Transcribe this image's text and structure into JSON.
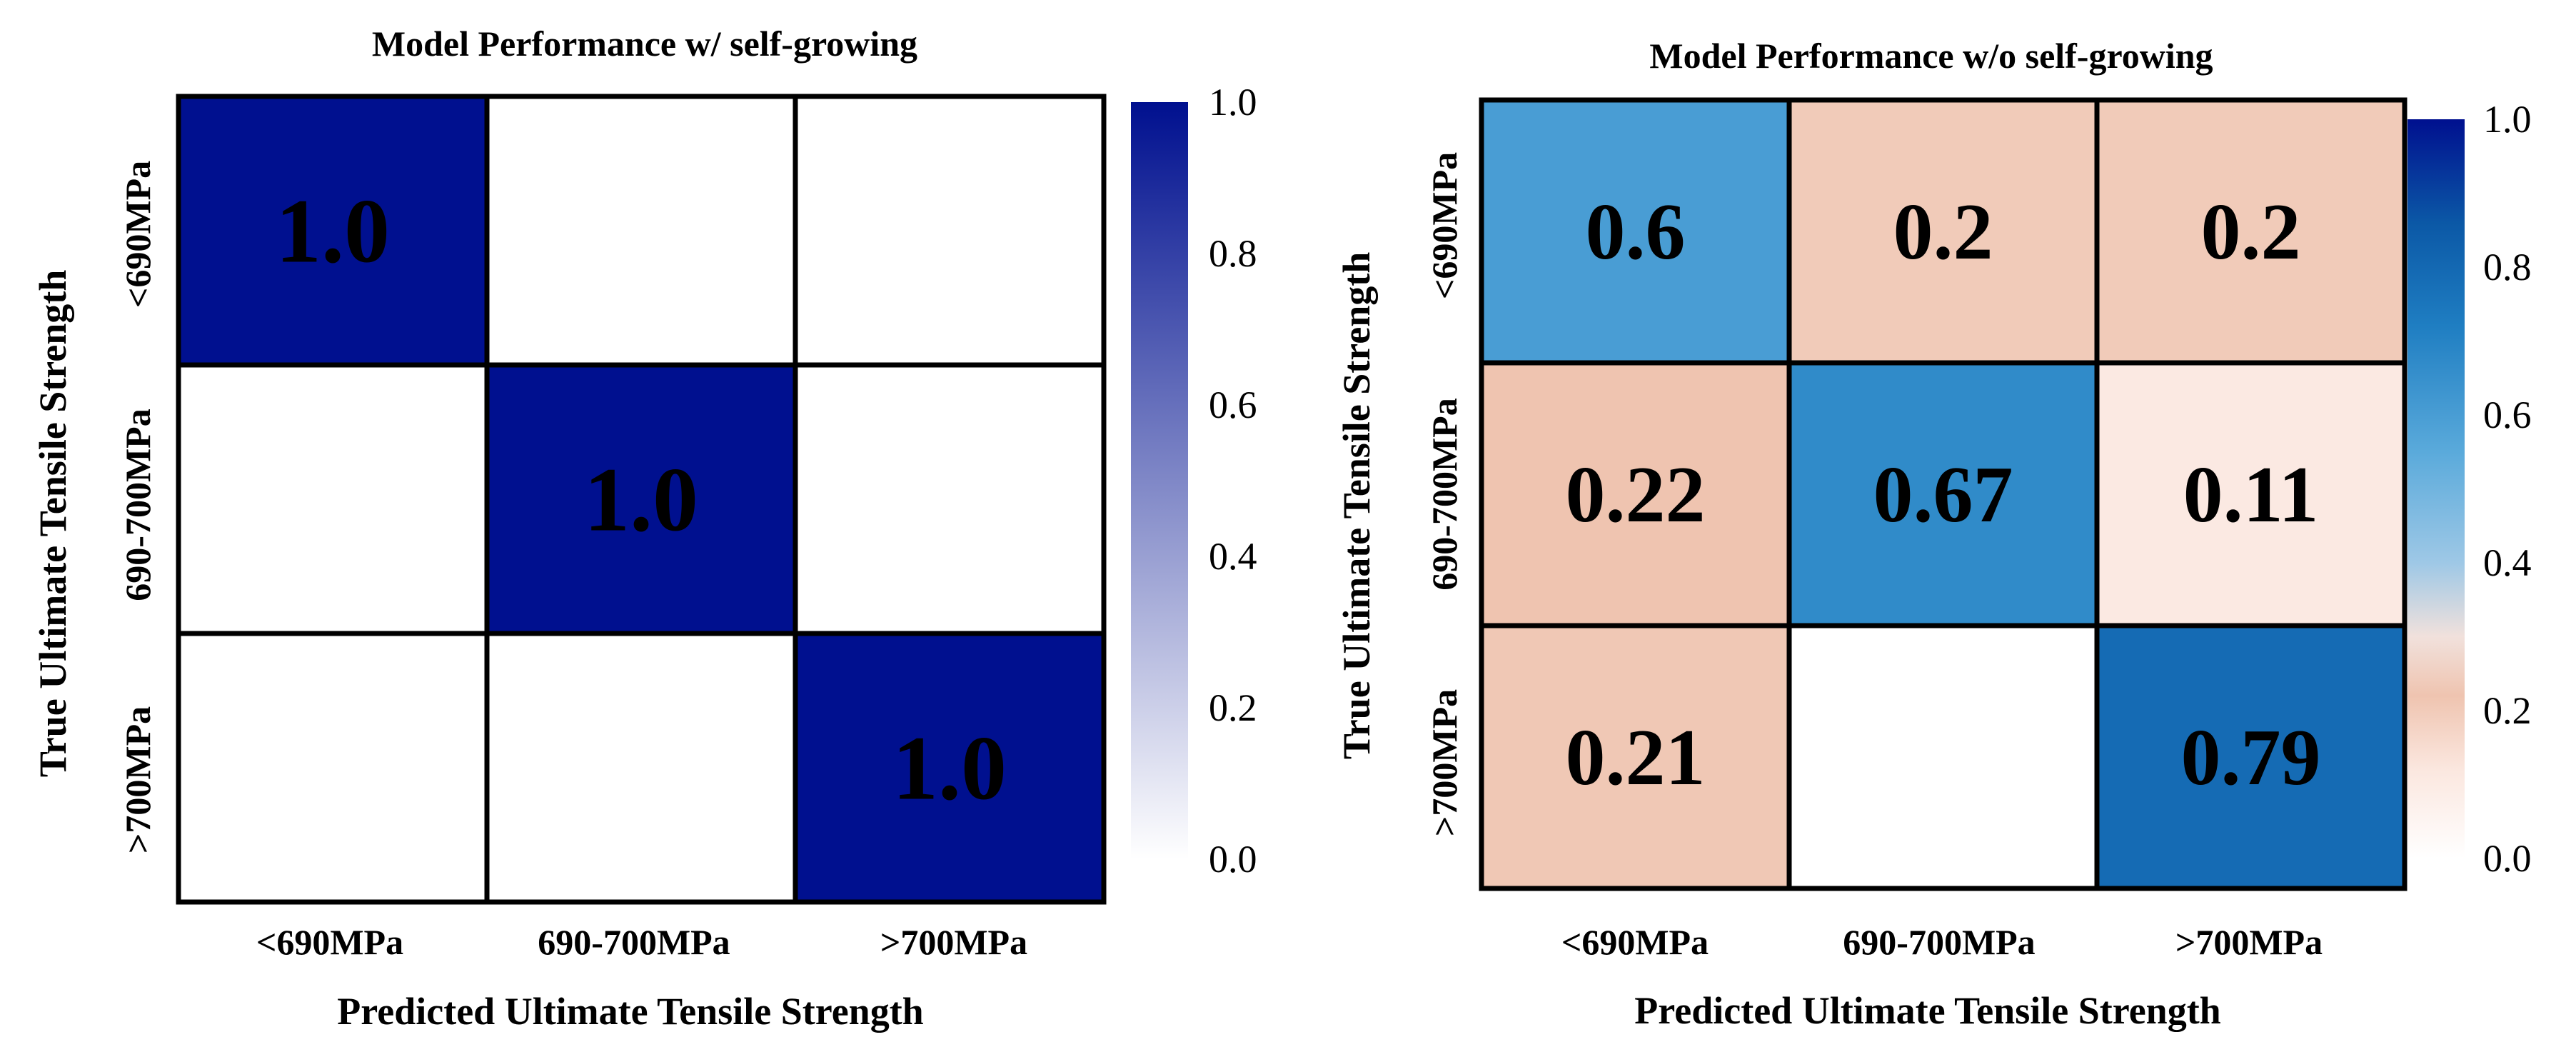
{
  "chart_data": [
    {
      "type": "heatmap",
      "title": "Model Performance w/ self-growing",
      "xlabel": "Predicted Ultimate Tensile Strength",
      "ylabel": "True Ultimate Tensile Strength",
      "x_categories": [
        "<690MPa",
        "690-700MPa",
        ">700MPa"
      ],
      "y_categories": [
        "<690MPa",
        "690-700MPa",
        ">700MPa"
      ],
      "values": [
        [
          1.0,
          0,
          0
        ],
        [
          0,
          1.0,
          0
        ],
        [
          0,
          0,
          1.0
        ]
      ],
      "labels": [
        [
          "1.0",
          "",
          ""
        ],
        [
          "",
          "1.0",
          ""
        ],
        [
          "",
          "",
          "1.0"
        ]
      ],
      "colorbar": {
        "range": [
          0,
          1
        ],
        "ticks": [
          "0.0",
          "0.2",
          "0.4",
          "0.6",
          "0.8",
          "1.0"
        ]
      },
      "colormap": "single-blue"
    },
    {
      "type": "heatmap",
      "title": "Model Performance w/o self-growing",
      "xlabel": "Predicted Ultimate Tensile Strength",
      "ylabel": "True Ultimate Tensile Strength",
      "x_categories": [
        "<690MPa",
        "690-700MPa",
        ">700MPa"
      ],
      "y_categories": [
        "<690MPa",
        "690-700MPa",
        ">700MPa"
      ],
      "values": [
        [
          0.6,
          0.2,
          0.2
        ],
        [
          0.22,
          0.67,
          0.11
        ],
        [
          0.21,
          0,
          0.79
        ]
      ],
      "labels": [
        [
          "0.6",
          "0.2",
          "0.2"
        ],
        [
          "0.22",
          "0.67",
          "0.11"
        ],
        [
          "0.21",
          "",
          "0.79"
        ]
      ],
      "colorbar": {
        "range": [
          0,
          1
        ],
        "ticks": [
          "0.0",
          "0.2",
          "0.4",
          "0.6",
          "0.8",
          "1.0"
        ]
      },
      "colormap": "diverging-blue"
    }
  ],
  "colors": {
    "single_blue": "#00108f",
    "white": "#ffffff",
    "diverging_stops": [
      "#ffffff",
      "#efc4b0",
      "#f6d9cd",
      "#ffffff",
      "#66b1dd",
      "#0563ae",
      "#00108f"
    ]
  }
}
